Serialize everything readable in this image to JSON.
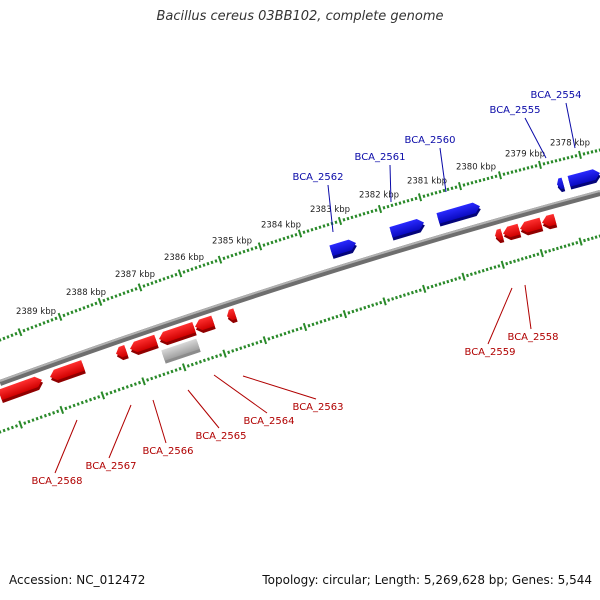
{
  "title": "Bacillus cereus 03BB102, complete genome",
  "footer": {
    "accession": "Accession: NC_012472",
    "summary": "Topology: circular; Length: 5,269,628 bp; Genes: 5,544"
  },
  "colors": {
    "forward_gene": "#1515d8",
    "reverse_gene": "#e01010",
    "pseudo_gene": "#b8b8b8",
    "backbone": "#8a8a8a",
    "ticks": "#2a8a2a",
    "forward_label": "#0a0aa8",
    "reverse_label": "#b00000"
  },
  "scale_labels": [
    "2389 kbp",
    "2388 kbp",
    "2387 kbp",
    "2386 kbp",
    "2385 kbp",
    "2384 kbp",
    "2383 kbp",
    "2382 kbp",
    "2381 kbp",
    "2380 kbp",
    "2379 kbp",
    "2378 kbp"
  ],
  "forward_labels": [
    "BCA_2562",
    "BCA_2561",
    "BCA_2560",
    "BCA_2555",
    "BCA_2554"
  ],
  "reverse_labels": [
    "BCA_2568",
    "BCA_2567",
    "BCA_2566",
    "BCA_2565",
    "BCA_2564",
    "BCA_2563",
    "BCA_2559",
    "BCA_2558"
  ]
}
